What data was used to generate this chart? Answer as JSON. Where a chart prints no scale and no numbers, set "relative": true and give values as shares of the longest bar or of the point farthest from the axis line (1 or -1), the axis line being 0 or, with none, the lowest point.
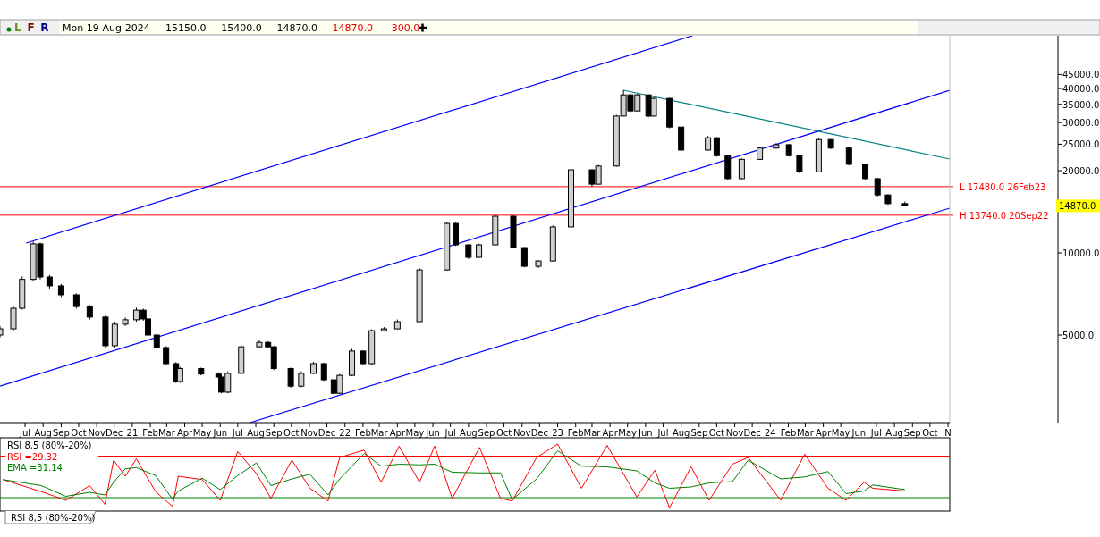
{
  "chart_data": [
    {
      "type": "candlestick",
      "log": true,
      "color": "#000000",
      "x": [
        "2020-05-19",
        "2020-06-11",
        "2020-06-26",
        "2020-07-15",
        "2020-07-27",
        "2020-08-12",
        "2020-09-01",
        "2020-09-27",
        "2020-10-20",
        "2020-11-16",
        "2020-12-02",
        "2020-12-20",
        "2021-01-08",
        "2021-01-20",
        "2021-01-28",
        "2021-02-12",
        "2021-02-28",
        "2021-03-17",
        "2021-03-24",
        "2021-04-29",
        "2021-05-29",
        "2021-06-03",
        "2021-06-14",
        "2021-07-07",
        "2021-08-07",
        "2021-08-22",
        "2021-09-01",
        "2021-09-30",
        "2021-10-18",
        "2021-11-08",
        "2021-11-26",
        "2021-12-13",
        "2021-12-23",
        "2022-01-13",
        "2022-02-01",
        "2022-02-16",
        "2022-03-09",
        "2022-04-01",
        "2022-05-09",
        "2022-06-25",
        "2022-07-10",
        "2022-08-01",
        "2022-08-19",
        "2022-09-16",
        "2022-10-17",
        "2022-11-05",
        "2022-11-29",
        "2022-12-24",
        "2023-01-24",
        "2023-03-01",
        "2023-03-12",
        "2023-04-12",
        "2023-04-24",
        "2023-05-06",
        "2023-05-18",
        "2023-06-06",
        "2023-06-15",
        "2023-07-12",
        "2023-08-01",
        "2023-09-16",
        "2023-10-01",
        "2023-10-20",
        "2023-11-13",
        "2023-12-14",
        "2024-01-11",
        "2024-02-02",
        "2024-02-20",
        "2024-03-24",
        "2024-04-14",
        "2024-05-15",
        "2024-06-12",
        "2024-07-03",
        "2024-07-21",
        "2024-08-19"
      ],
      "ohlc": [
        [
          5000,
          5400,
          4900,
          5270
        ],
        [
          5270,
          6400,
          5200,
          6270
        ],
        [
          6270,
          8200,
          6200,
          8000
        ],
        [
          8000,
          11000,
          7900,
          10790
        ],
        [
          10790,
          10900,
          8000,
          8160
        ],
        [
          8160,
          8300,
          7400,
          7570
        ],
        [
          7570,
          7700,
          6900,
          7020
        ],
        [
          7020,
          7100,
          6250,
          6360
        ],
        [
          6360,
          6450,
          5700,
          5820
        ],
        [
          5820,
          5900,
          4500,
          4570
        ],
        [
          4570,
          5600,
          4500,
          5480
        ],
        [
          5480,
          5800,
          5400,
          5690
        ],
        [
          5690,
          6300,
          5600,
          6170
        ],
        [
          6170,
          6250,
          5650,
          5730
        ],
        [
          5730,
          5800,
          4950,
          5000
        ],
        [
          5000,
          5050,
          4450,
          4500
        ],
        [
          4500,
          4550,
          3880,
          3930
        ],
        [
          3930,
          3980,
          3340,
          3380
        ],
        [
          3380,
          3820,
          3340,
          3770
        ],
        [
          3770,
          3800,
          3560,
          3600
        ],
        [
          3600,
          3650,
          3480,
          3510
        ],
        [
          3510,
          3550,
          3060,
          3090
        ],
        [
          3090,
          3680,
          3060,
          3620
        ],
        [
          3620,
          4600,
          3600,
          4530
        ],
        [
          4530,
          4780,
          4480,
          4700
        ],
        [
          4700,
          4750,
          4480,
          4530
        ],
        [
          4530,
          4560,
          3720,
          3770
        ],
        [
          3770,
          3800,
          3210,
          3250
        ],
        [
          3250,
          3680,
          3220,
          3620
        ],
        [
          3620,
          3990,
          3600,
          3930
        ],
        [
          3930,
          3960,
          3400,
          3430
        ],
        [
          3430,
          3450,
          3020,
          3060
        ],
        [
          3060,
          3600,
          3040,
          3560
        ],
        [
          3560,
          4450,
          3540,
          4370
        ],
        [
          4370,
          4400,
          3880,
          3930
        ],
        [
          3930,
          5250,
          3900,
          5190
        ],
        [
          5190,
          5350,
          5150,
          5270
        ],
        [
          5270,
          5700,
          5250,
          5600
        ],
        [
          5600,
          8800,
          5580,
          8660
        ],
        [
          8660,
          13000,
          8600,
          12820
        ],
        [
          12820,
          12900,
          10600,
          10700
        ],
        [
          10700,
          10750,
          9500,
          9630
        ],
        [
          9630,
          10800,
          9600,
          10700
        ],
        [
          10700,
          13740,
          10650,
          13620
        ],
        [
          13620,
          13700,
          10400,
          10460
        ],
        [
          10460,
          10500,
          8850,
          8930
        ],
        [
          8930,
          9400,
          8800,
          9340
        ],
        [
          9340,
          12600,
          9300,
          12450
        ],
        [
          12450,
          20500,
          12400,
          20150
        ],
        [
          20150,
          20200,
          17480,
          17850
        ],
        [
          17850,
          21000,
          17800,
          20800
        ],
        [
          20800,
          32000,
          20700,
          31700
        ],
        [
          31700,
          39400,
          31600,
          37900
        ],
        [
          37900,
          38200,
          32800,
          33100
        ],
        [
          33100,
          38200,
          33000,
          37900
        ],
        [
          37900,
          38000,
          31400,
          31700
        ],
        [
          31700,
          37200,
          31600,
          36800
        ],
        [
          36800,
          37000,
          28600,
          28900
        ],
        [
          28900,
          29000,
          23500,
          23800
        ],
        [
          23800,
          26800,
          23700,
          26400
        ],
        [
          26400,
          26500,
          22500,
          22700
        ],
        [
          22700,
          22800,
          18500,
          18700
        ],
        [
          18700,
          22200,
          18600,
          22000
        ],
        [
          22000,
          24400,
          21900,
          24200
        ],
        [
          24200,
          25200,
          24100,
          24900
        ],
        [
          24900,
          25000,
          22500,
          22700
        ],
        [
          22700,
          22800,
          19600,
          19800
        ],
        [
          19800,
          26300,
          19700,
          26000
        ],
        [
          26000,
          26100,
          24000,
          24200
        ],
        [
          24200,
          24300,
          20900,
          21100
        ],
        [
          21100,
          21200,
          18500,
          18700
        ],
        [
          18700,
          18800,
          16100,
          16300
        ],
        [
          16300,
          16400,
          15000,
          15150
        ],
        [
          15150,
          15400,
          14870,
          14870
        ]
      ],
      "series": [
        {
          "type": "line",
          "color": "#0000ff",
          "x": [
            "2020-07-03",
            "2023-08-20"
          ],
          "values": [
            10870,
            62400
          ]
        },
        {
          "type": "line",
          "color": "#0000ff",
          "x": [
            "2020-05-19",
            "2024-11-04"
          ],
          "values": [
            3250,
            39400
          ]
        },
        {
          "type": "line",
          "color": "#0000ff",
          "x": [
            "2021-07-22",
            "2024-11-04"
          ],
          "values": [
            2390,
            14580
          ]
        },
        {
          "type": "line",
          "color": "#008080",
          "x": [
            "2023-04-24",
            "2024-11-04"
          ],
          "values": [
            39400,
            22060
          ]
        }
      ],
      "ref_lines": [
        {
          "axis": "y",
          "value": 17480,
          "label": "L 17480.0 26Feb23",
          "color": "#ff0000"
        },
        {
          "axis": "y",
          "value": 13740,
          "label": "H 13740.0 20Sep22",
          "color": "#ff0000"
        }
      ],
      "xlim": [
        "2020-05-19",
        "2024-11-04"
      ],
      "xticks": [
        {
          "value": "2020-07-01",
          "label": "Jul"
        },
        {
          "value": "2020-08-01",
          "label": "Aug"
        },
        {
          "value": "2020-09-01",
          "label": "Sep"
        },
        {
          "value": "2020-10-01",
          "label": "Oct"
        },
        {
          "value": "2020-11-01",
          "label": "Nov"
        },
        {
          "value": "2020-12-01",
          "label": "Dec"
        },
        {
          "value": "2021-01-01",
          "label": "21"
        },
        {
          "value": "2021-02-01",
          "label": "Feb"
        },
        {
          "value": "2021-03-01",
          "label": "Mar"
        },
        {
          "value": "2021-04-01",
          "label": "Apr"
        },
        {
          "value": "2021-05-01",
          "label": "May"
        },
        {
          "value": "2021-06-01",
          "label": "Jun"
        },
        {
          "value": "2021-07-01",
          "label": "Jul"
        },
        {
          "value": "2021-08-01",
          "label": "Aug"
        },
        {
          "value": "2021-09-01",
          "label": "Sep"
        },
        {
          "value": "2021-10-01",
          "label": "Oct"
        },
        {
          "value": "2021-11-01",
          "label": "Nov"
        },
        {
          "value": "2021-12-01",
          "label": "Dec"
        },
        {
          "value": "2022-01-01",
          "label": "22"
        },
        {
          "value": "2022-02-01",
          "label": "Feb"
        },
        {
          "value": "2022-03-01",
          "label": "Mar"
        },
        {
          "value": "2022-04-01",
          "label": "Apr"
        },
        {
          "value": "2022-05-01",
          "label": "May"
        },
        {
          "value": "2022-06-01",
          "label": "Jun"
        },
        {
          "value": "2022-07-01",
          "label": "Jul"
        },
        {
          "value": "2022-08-01",
          "label": "Aug"
        },
        {
          "value": "2022-09-01",
          "label": "Sep"
        },
        {
          "value": "2022-10-01",
          "label": "Oct"
        },
        {
          "value": "2022-11-01",
          "label": "Nov"
        },
        {
          "value": "2022-12-01",
          "label": "Dec"
        },
        {
          "value": "2023-01-01",
          "label": "23"
        },
        {
          "value": "2023-02-01",
          "label": "Feb"
        },
        {
          "value": "2023-03-01",
          "label": "Mar"
        },
        {
          "value": "2023-04-01",
          "label": "Apr"
        },
        {
          "value": "2023-05-01",
          "label": "May"
        },
        {
          "value": "2023-06-01",
          "label": "Jun"
        },
        {
          "value": "2023-07-01",
          "label": "Jul"
        },
        {
          "value": "2023-08-01",
          "label": "Aug"
        },
        {
          "value": "2023-09-01",
          "label": "Sep"
        },
        {
          "value": "2023-10-01",
          "label": "Oct"
        },
        {
          "value": "2023-11-01",
          "label": "Nov"
        },
        {
          "value": "2023-12-01",
          "label": "Dec"
        },
        {
          "value": "2024-01-01",
          "label": "24"
        },
        {
          "value": "2024-02-01",
          "label": "Feb"
        },
        {
          "value": "2024-03-01",
          "label": "Mar"
        },
        {
          "value": "2024-04-01",
          "label": "Apr"
        },
        {
          "value": "2024-05-01",
          "label": "May"
        },
        {
          "value": "2024-06-01",
          "label": "Jun"
        },
        {
          "value": "2024-07-01",
          "label": "Jul"
        },
        {
          "value": "2024-08-01",
          "label": "Aug"
        },
        {
          "value": "2024-09-01",
          "label": "Sep"
        },
        {
          "value": "2024-10-01",
          "label": "Oct"
        },
        {
          "value": "2024-11-01",
          "label": "N"
        }
      ],
      "ylim": [
        2390,
        62400
      ],
      "yticks": [
        {
          "value": 5000,
          "label": "5000.0"
        },
        {
          "value": 10000,
          "label": "10000.0"
        },
        {
          "value": 20000,
          "label": "20000.0"
        },
        {
          "value": 25000,
          "label": "25000.0"
        },
        {
          "value": 30000,
          "label": "30000.0"
        },
        {
          "value": 35000,
          "label": "35000.0"
        },
        {
          "value": 40000,
          "label": "40000.0"
        },
        {
          "value": 45000,
          "label": "45000.0"
        }
      ],
      "annotations": [
        "L",
        "F",
        "R",
        "Mon 19-Aug-2024",
        "15150.0",
        "15400.0",
        "14870.0",
        "14870.0",
        "-300.0",
        "14870.0"
      ]
    },
    {
      "type": "line",
      "title": "RSI 8,5 (80%-20%)",
      "legend": "top left",
      "relative": true,
      "xlim": [
        "2020-05-19",
        "2024-11-04"
      ],
      "x": [
        "2020-05-24",
        "2020-07-29",
        "2020-09-09",
        "2020-10-20",
        "2020-11-15",
        "2020-11-30",
        "2020-12-20",
        "2021-01-08",
        "2021-02-10",
        "2021-03-11",
        "2021-03-21",
        "2021-05-01",
        "2021-06-01",
        "2021-07-01",
        "2021-08-02",
        "2021-08-27",
        "2021-10-02",
        "2021-11-02",
        "2021-12-03",
        "2021-12-23",
        "2022-02-03",
        "2022-03-04",
        "2022-04-04",
        "2022-05-09",
        "2022-06-04",
        "2022-07-04",
        "2022-08-20",
        "2022-09-25",
        "2022-10-15",
        "2022-11-26",
        "2023-01-01",
        "2023-02-11",
        "2023-03-27",
        "2023-05-17",
        "2023-06-17",
        "2023-07-12",
        "2023-08-18",
        "2023-09-18",
        "2023-10-28",
        "2023-11-24",
        "2024-01-19",
        "2024-02-29",
        "2024-04-09",
        "2024-05-10",
        "2024-06-10",
        "2024-06-25",
        "2024-08-19"
      ],
      "series": [
        {
          "name": "RSI =29.32",
          "color": "#ff0000",
          "values": [
            0.47,
            0.29,
            0.16,
            0.38,
            0.1,
            0.76,
            0.52,
            0.78,
            0.29,
            0.07,
            0.52,
            0.47,
            0.16,
            0.89,
            0.56,
            0.19,
            0.76,
            0.34,
            0.15,
            0.8,
            0.91,
            0.43,
            0.97,
            0.43,
            0.97,
            0.19,
            0.95,
            0.19,
            0.15,
            0.8,
            1,
            0.34,
            0.98,
            0.21,
            0.61,
            0.05,
            0.66,
            0.16,
            0.7,
            0.8,
            0.16,
            0.85,
            0.34,
            0.16,
            0.43,
            0.34,
            0.3
          ]
        },
        {
          "name": "EMA =31.14",
          "color": "#008000",
          "values": [
            0.47,
            0.38,
            0.22,
            0.28,
            0.24,
            0.43,
            0.63,
            0.65,
            0.53,
            0.18,
            0.3,
            0.49,
            0.32,
            0.53,
            0.72,
            0.38,
            0.48,
            0.55,
            0.24,
            0.48,
            0.86,
            0.67,
            0.7,
            0.69,
            0.7,
            0.58,
            0.57,
            0.57,
            0.17,
            0.48,
            0.9,
            0.67,
            0.66,
            0.6,
            0.42,
            0.34,
            0.36,
            0.42,
            0.44,
            0.76,
            0.48,
            0.51,
            0.59,
            0.26,
            0.3,
            0.39,
            0.32
          ]
        }
      ],
      "ref_lines": [
        {
          "axis": "y",
          "value": 0.82,
          "color": "#ff0000"
        },
        {
          "axis": "y",
          "value": 0.2,
          "color": "#008000"
        }
      ],
      "annotations": [
        "RSI 8,5 (80%-20%)"
      ]
    }
  ]
}
